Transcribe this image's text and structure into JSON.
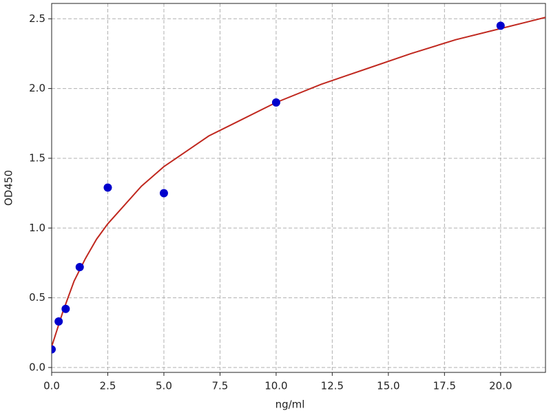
{
  "chart_data": {
    "type": "scatter",
    "x_label": "ng/ml",
    "y_label": "OD450",
    "xlim": [
      0,
      22
    ],
    "ylim": [
      -0.035,
      2.61
    ],
    "xticks": [
      {
        "value": 0,
        "label": "0.0"
      },
      {
        "value": 2.5,
        "label": "2.5"
      },
      {
        "value": 5,
        "label": "5.0"
      },
      {
        "value": 7.5,
        "label": "7.5"
      },
      {
        "value": 10,
        "label": "10.0"
      },
      {
        "value": 12.5,
        "label": "12.5"
      },
      {
        "value": 15,
        "label": "15.0"
      },
      {
        "value": 17.5,
        "label": "17.5"
      },
      {
        "value": 20,
        "label": "20.0"
      }
    ],
    "yticks": [
      {
        "value": 0,
        "label": "0.0"
      },
      {
        "value": 0.5,
        "label": "0.5"
      },
      {
        "value": 1,
        "label": "1.0"
      },
      {
        "value": 1.5,
        "label": "1.5"
      },
      {
        "value": 2,
        "label": "2.0"
      },
      {
        "value": 2.5,
        "label": "2.5"
      }
    ],
    "grid": true,
    "series": [
      {
        "mark": "line",
        "color": "#c0281f",
        "x": [
          0,
          0.5,
          1,
          1.5,
          2,
          2.5,
          3,
          4,
          5,
          6,
          7,
          8,
          10,
          12,
          14,
          16,
          18,
          20,
          22
        ],
        "values": [
          0.15,
          0.4,
          0.62,
          0.78,
          0.92,
          1.03,
          1.12,
          1.3,
          1.44,
          1.55,
          1.66,
          1.74,
          1.9,
          2.03,
          2.14,
          2.25,
          2.35,
          2.43,
          2.51
        ]
      },
      {
        "mark": "point",
        "color": "#0000cc",
        "x": [
          0,
          0.3125,
          0.625,
          1.25,
          2.5,
          5,
          10,
          20
        ],
        "values": [
          0.13,
          0.33,
          0.42,
          0.72,
          1.29,
          1.25,
          1.9,
          2.45
        ]
      }
    ]
  }
}
